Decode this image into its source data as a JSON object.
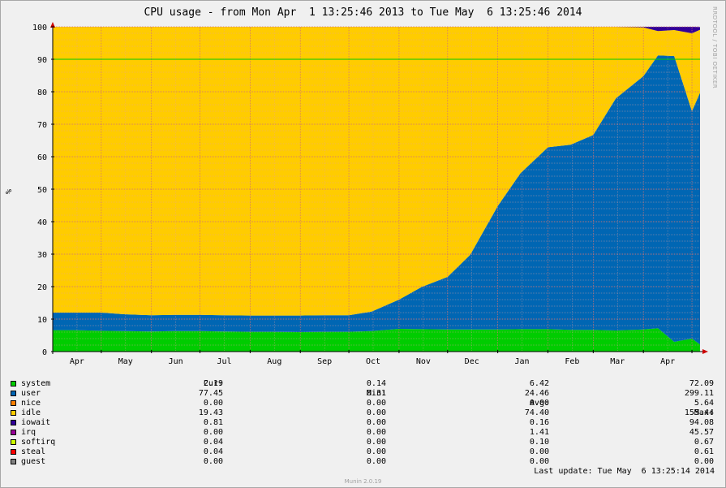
{
  "title": "CPU usage - from Mon Apr  1 13:25:46 2013 to Tue May  6 13:25:46 2014",
  "side_label": "RRDTOOL / TOBI OETIKER",
  "footer": "Munin 2.0.19",
  "last_update": "Last update: Tue May  6 13:25:14 2014",
  "colors": {
    "background": "#f0f0f0",
    "grid_minor": "#e8a0a0",
    "grid_major": "#d07070",
    "warning_line": "#00cc00",
    "axis": "#000000",
    "arrow": "#cc0000"
  },
  "chart_data": {
    "type": "area",
    "stacked": true,
    "ylabel": "%",
    "ylim": [
      0,
      100
    ],
    "yticks": [
      0,
      10,
      20,
      30,
      40,
      50,
      60,
      70,
      80,
      90,
      100
    ],
    "xlim": [
      "2013-04-01",
      "2014-05-06"
    ],
    "x_tick_labels": [
      "Apr",
      "May",
      "Jun",
      "Jul",
      "Aug",
      "Sep",
      "Oct",
      "Nov",
      "Dec",
      "Jan",
      "Feb",
      "Mar",
      "Apr"
    ],
    "warning_line": 90,
    "grid": true,
    "x": [
      "2013-04-01",
      "2013-04-15",
      "2013-05-01",
      "2013-05-15",
      "2013-06-01",
      "2013-06-15",
      "2013-07-01",
      "2013-07-15",
      "2013-08-01",
      "2013-08-15",
      "2013-09-01",
      "2013-09-15",
      "2013-10-01",
      "2013-10-15",
      "2013-11-01",
      "2013-11-15",
      "2013-12-01",
      "2013-12-15",
      "2014-01-01",
      "2014-01-15",
      "2014-02-01",
      "2014-02-15",
      "2014-03-01",
      "2014-03-15",
      "2014-04-01",
      "2014-04-10",
      "2014-04-20",
      "2014-05-01",
      "2014-05-06"
    ],
    "series": [
      {
        "name": "system",
        "color": "#00cc00",
        "values": [
          6.6,
          6.6,
          6.4,
          6.3,
          6.2,
          6.3,
          6.3,
          6.2,
          6.1,
          6.1,
          6.0,
          6.1,
          6.1,
          6.3,
          7.0,
          6.9,
          6.8,
          6.8,
          6.8,
          6.9,
          6.9,
          6.7,
          6.7,
          6.5,
          6.8,
          7.2,
          3.0,
          4.0,
          2.2
        ]
      },
      {
        "name": "user",
        "color": "#0066b3",
        "values": [
          5.4,
          5.4,
          5.6,
          5.2,
          5.0,
          5.0,
          5.0,
          5.0,
          5.0,
          5.0,
          5.1,
          5.1,
          5.1,
          6.0,
          9.0,
          13.0,
          16.2,
          23.0,
          38.0,
          48.0,
          56.0,
          57.0,
          60.0,
          71.5,
          78.0,
          84.0,
          88.0,
          70.0,
          77.5
        ]
      },
      {
        "name": "nice",
        "color": "#ff8000",
        "values": [
          0,
          0,
          0,
          0,
          0,
          0,
          0,
          0,
          0,
          0,
          0,
          0,
          0,
          0,
          0,
          0,
          0,
          0,
          0,
          0,
          0,
          0,
          0,
          0,
          0,
          0,
          0,
          0,
          0
        ]
      },
      {
        "name": "idle",
        "color": "#ffcc00",
        "values": [
          88.0,
          88.0,
          88.0,
          88.5,
          88.8,
          88.7,
          88.7,
          88.8,
          88.9,
          88.9,
          88.9,
          88.8,
          88.8,
          87.7,
          84.0,
          80.1,
          77.0,
          70.2,
          55.2,
          45.1,
          37.1,
          36.3,
          33.3,
          22.0,
          15.0,
          7.5,
          8.0,
          24.0,
          19.4
        ]
      },
      {
        "name": "iowait",
        "color": "#330099",
        "values": [
          0,
          0,
          0,
          0,
          0,
          0,
          0,
          0,
          0,
          0,
          0,
          0,
          0,
          0,
          0,
          0,
          0,
          0,
          0,
          0,
          0,
          0,
          0,
          0,
          0.2,
          1.3,
          1.0,
          2.0,
          0.8
        ]
      },
      {
        "name": "irq",
        "color": "#990099",
        "values": [
          0,
          0,
          0,
          0,
          0,
          0,
          0,
          0,
          0,
          0,
          0,
          0,
          0,
          0,
          0,
          0,
          0,
          0,
          0,
          0,
          0,
          0,
          0,
          0,
          0,
          0,
          0,
          0,
          0
        ]
      },
      {
        "name": "softirq",
        "color": "#ccff00",
        "values": [
          0,
          0,
          0,
          0,
          0,
          0,
          0,
          0,
          0,
          0,
          0,
          0,
          0,
          0,
          0,
          0,
          0,
          0,
          0,
          0,
          0,
          0,
          0,
          0,
          0,
          0,
          0,
          0,
          0
        ]
      },
      {
        "name": "steal",
        "color": "#ff0000",
        "values": [
          0,
          0,
          0,
          0,
          0,
          0,
          0,
          0,
          0,
          0,
          0,
          0,
          0,
          0,
          0,
          0,
          0,
          0,
          0,
          0,
          0,
          0,
          0,
          0,
          0,
          0,
          0,
          0,
          0
        ]
      },
      {
        "name": "guest",
        "color": "#808080",
        "values": [
          0,
          0,
          0,
          0,
          0,
          0,
          0,
          0,
          0,
          0,
          0,
          0,
          0,
          0,
          0,
          0,
          0,
          0,
          0,
          0,
          0,
          0,
          0,
          0,
          0,
          0,
          0,
          0,
          0
        ]
      }
    ]
  },
  "legend": {
    "headers": {
      "cur": "Cur:",
      "min": "Min:",
      "avg": "Avg:",
      "max": "Max:"
    },
    "rows": [
      {
        "name": "system",
        "color": "#00cc00",
        "cur": "2.19",
        "min": "0.14",
        "avg": "6.42",
        "max": "72.09"
      },
      {
        "name": "user",
        "color": "#0066b3",
        "cur": "77.45",
        "min": "0.31",
        "avg": "24.46",
        "max": "299.11"
      },
      {
        "name": "nice",
        "color": "#ff8000",
        "cur": "0.00",
        "min": "0.00",
        "avg": "0.00",
        "max": "5.64"
      },
      {
        "name": "idle",
        "color": "#ffcc00",
        "cur": "19.43",
        "min": "0.00",
        "avg": "74.40",
        "max": "155.44"
      },
      {
        "name": "iowait",
        "color": "#330099",
        "cur": "0.81",
        "min": "0.00",
        "avg": "0.16",
        "max": "94.08"
      },
      {
        "name": "irq",
        "color": "#990099",
        "cur": "0.00",
        "min": "0.00",
        "avg": "1.41",
        "max": "45.57"
      },
      {
        "name": "softirq",
        "color": "#ccff00",
        "cur": "0.04",
        "min": "0.00",
        "avg": "0.10",
        "max": "0.67"
      },
      {
        "name": "steal",
        "color": "#ff0000",
        "cur": "0.04",
        "min": "0.00",
        "avg": "0.00",
        "max": "0.61"
      },
      {
        "name": "guest",
        "color": "#808080",
        "cur": "0.00",
        "min": "0.00",
        "avg": "0.00",
        "max": "0.00"
      }
    ]
  }
}
